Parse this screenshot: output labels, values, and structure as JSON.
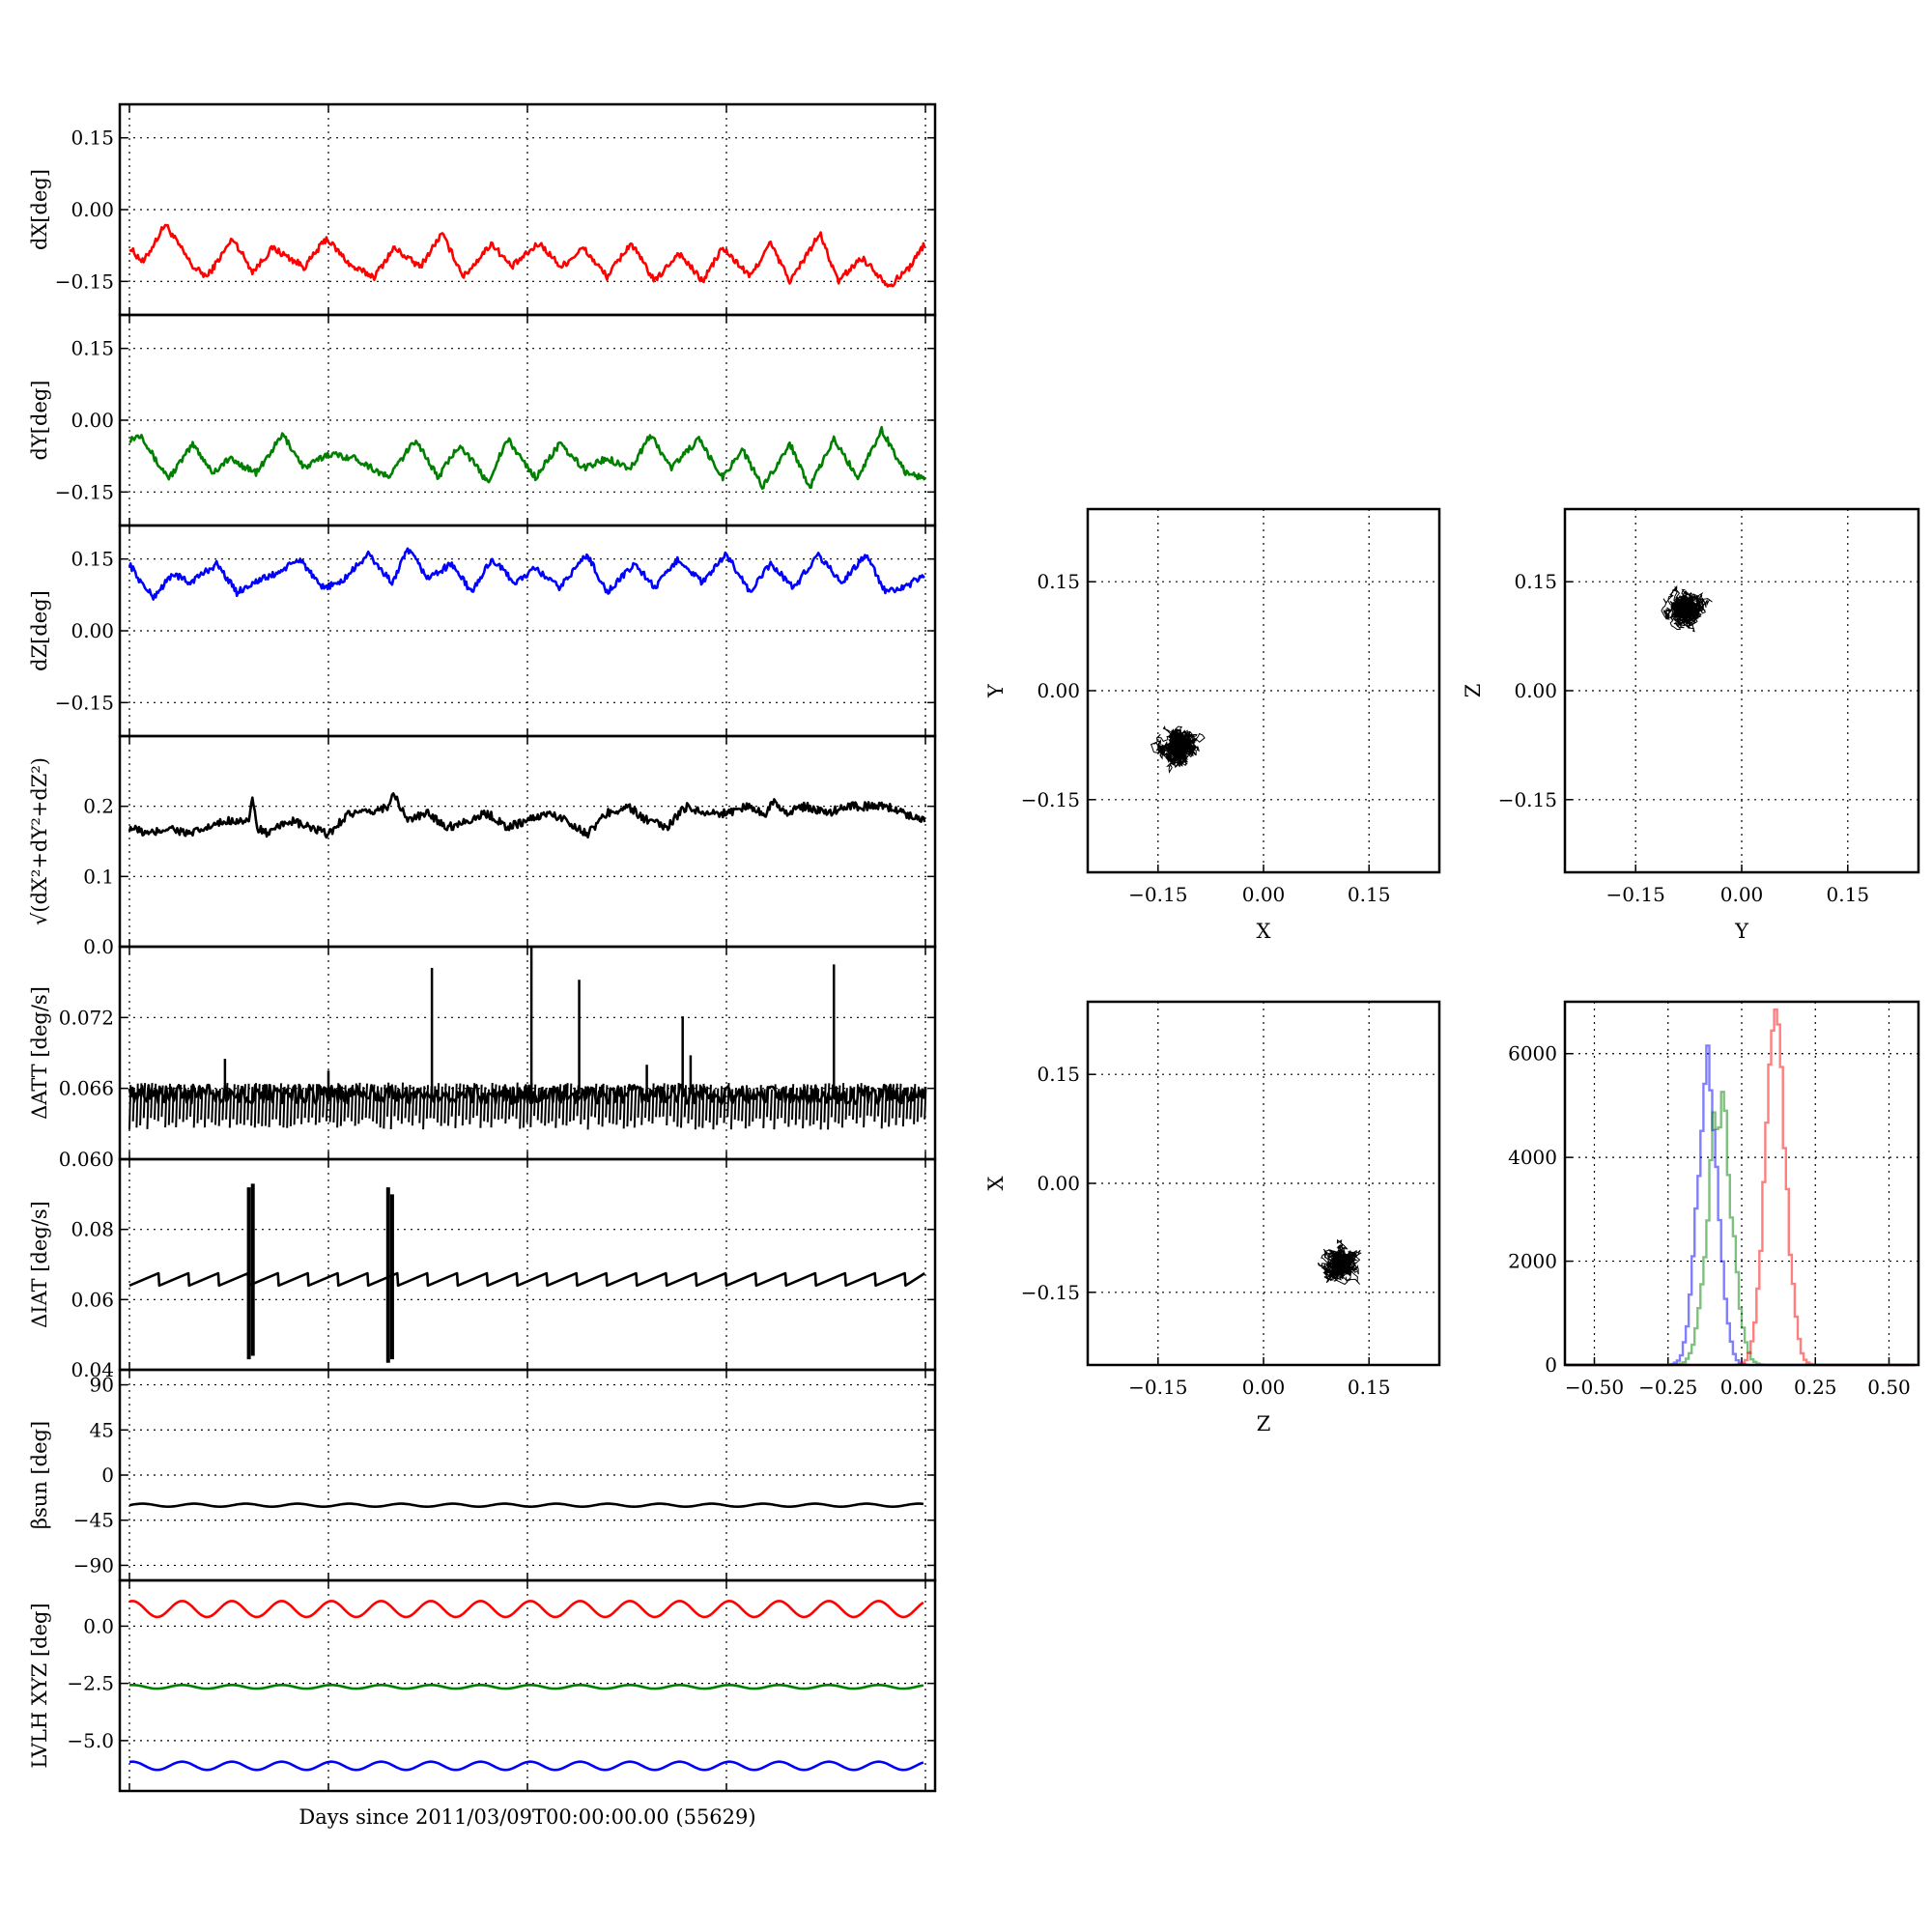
{
  "figure": {
    "xlabel": "Days since 2011/03/09T00:00:00.00 (55629)"
  },
  "chart_data": [
    {
      "id": "dx",
      "type": "line",
      "ylabel": "dX[deg]",
      "xlim": [
        0,
        20
      ],
      "ylim": [
        -0.22,
        0.22
      ],
      "yticks": [
        0.15,
        0.0,
        -0.15
      ],
      "ytick_labels": [
        "0.15",
        "0.00",
        "−0.15"
      ],
      "color": "#ff0000",
      "grid": true,
      "series": [
        {
          "x": [
            0,
            0.35,
            0.9,
            1.6,
            1.95,
            2.6,
            3.1,
            3.6,
            4.4,
            4.95,
            5.6,
            6.15,
            6.65,
            7.3,
            7.85,
            8.4,
            9.1,
            9.6,
            10.3,
            10.85,
            11.4,
            12.0,
            12.6,
            13.2,
            13.8,
            14.4,
            14.9,
            15.6,
            16.1,
            16.6,
            17.35,
            17.8,
            18.4,
            19.1,
            19.6,
            20
          ],
          "y": [
            -0.08,
            -0.11,
            -0.03,
            -0.12,
            -0.14,
            -0.06,
            -0.13,
            -0.08,
            -0.12,
            -0.06,
            -0.12,
            -0.14,
            -0.08,
            -0.12,
            -0.05,
            -0.14,
            -0.07,
            -0.12,
            -0.07,
            -0.12,
            -0.08,
            -0.14,
            -0.07,
            -0.15,
            -0.09,
            -0.15,
            -0.08,
            -0.14,
            -0.07,
            -0.15,
            -0.05,
            -0.15,
            -0.1,
            -0.16,
            -0.12,
            -0.07
          ]
        }
      ]
    },
    {
      "id": "dy",
      "type": "line",
      "ylabel": "dY[deg]",
      "xlim": [
        0,
        20
      ],
      "ylim": [
        -0.22,
        0.22
      ],
      "yticks": [
        0.15,
        0.0,
        -0.15
      ],
      "ytick_labels": [
        "0.15",
        "0.00",
        "−0.15"
      ],
      "color": "#008000",
      "grid": true,
      "series": [
        {
          "x": [
            0,
            0.3,
            0.7,
            1.0,
            1.6,
            2.1,
            2.5,
            3.2,
            3.85,
            4.4,
            5.0,
            5.7,
            6.1,
            6.5,
            7.2,
            7.75,
            8.3,
            9.0,
            9.5,
            10.2,
            10.8,
            11.4,
            12.0,
            12.6,
            13.1,
            13.6,
            14.3,
            14.9,
            15.4,
            15.9,
            16.6,
            17.1,
            17.7,
            18.3,
            18.9,
            19.5,
            20
          ],
          "y": [
            -0.04,
            -0.03,
            -0.09,
            -0.12,
            -0.05,
            -0.11,
            -0.08,
            -0.11,
            -0.03,
            -0.1,
            -0.07,
            -0.08,
            -0.1,
            -0.12,
            -0.04,
            -0.12,
            -0.05,
            -0.13,
            -0.04,
            -0.12,
            -0.05,
            -0.1,
            -0.08,
            -0.1,
            -0.03,
            -0.1,
            -0.04,
            -0.12,
            -0.06,
            -0.14,
            -0.05,
            -0.14,
            -0.04,
            -0.12,
            -0.02,
            -0.11,
            -0.12
          ]
        }
      ]
    },
    {
      "id": "dz",
      "type": "line",
      "ylabel": "dZ[deg]",
      "xlim": [
        0,
        20
      ],
      "ylim": [
        -0.22,
        0.22
      ],
      "yticks": [
        0.15,
        0.0,
        -0.15
      ],
      "ytick_labels": [
        "0.15",
        "0.00",
        "−0.15"
      ],
      "color": "#0000ff",
      "grid": true,
      "series": [
        {
          "x": [
            0,
            0.3,
            0.6,
            1.1,
            1.5,
            2.2,
            2.7,
            3.1,
            3.7,
            4.3,
            4.8,
            5.3,
            6.0,
            6.6,
            7.0,
            7.5,
            8.1,
            8.6,
            9.1,
            9.7,
            10.2,
            10.8,
            11.5,
            12.0,
            12.7,
            13.2,
            13.8,
            14.4,
            15.0,
            15.6,
            16.1,
            16.7,
            17.3,
            17.9,
            18.5,
            19.0,
            19.5,
            20
          ],
          "y": [
            0.14,
            0.1,
            0.07,
            0.12,
            0.1,
            0.14,
            0.08,
            0.1,
            0.12,
            0.15,
            0.09,
            0.1,
            0.16,
            0.1,
            0.17,
            0.11,
            0.14,
            0.08,
            0.15,
            0.1,
            0.13,
            0.09,
            0.16,
            0.08,
            0.14,
            0.09,
            0.15,
            0.1,
            0.16,
            0.08,
            0.14,
            0.09,
            0.16,
            0.1,
            0.16,
            0.08,
            0.09,
            0.12
          ]
        }
      ]
    },
    {
      "id": "r",
      "type": "line",
      "ylabel": "√(dX²+dY²+dZ²)",
      "xlim": [
        0,
        20
      ],
      "ylim": [
        0.0,
        0.3
      ],
      "yticks": [
        0.2,
        0.1,
        0.0
      ],
      "ytick_labels": [
        "0.2",
        "0.1",
        "0.0"
      ],
      "color": "#000000",
      "grid": true,
      "series": [
        {
          "x": [
            0,
            0.5,
            1.0,
            1.5,
            2.0,
            2.5,
            3.0,
            3.1,
            3.2,
            3.5,
            4.0,
            4.5,
            5.0,
            5.5,
            6.0,
            6.5,
            6.6,
            7.0,
            7.5,
            8.0,
            8.5,
            9.0,
            9.5,
            10.0,
            10.5,
            11.0,
            11.5,
            12.0,
            12.5,
            13.0,
            13.5,
            14.0,
            14.5,
            15.0,
            15.5,
            16.0,
            16.2,
            16.5,
            17.0,
            17.5,
            18.0,
            18.5,
            19.0,
            19.5,
            20
          ],
          "y": [
            0.17,
            0.16,
            0.17,
            0.16,
            0.17,
            0.18,
            0.18,
            0.21,
            0.17,
            0.16,
            0.18,
            0.17,
            0.16,
            0.19,
            0.19,
            0.2,
            0.22,
            0.18,
            0.19,
            0.17,
            0.18,
            0.19,
            0.17,
            0.18,
            0.19,
            0.18,
            0.16,
            0.19,
            0.2,
            0.18,
            0.17,
            0.2,
            0.19,
            0.19,
            0.2,
            0.19,
            0.21,
            0.19,
            0.2,
            0.19,
            0.2,
            0.2,
            0.2,
            0.19,
            0.18
          ]
        }
      ]
    },
    {
      "id": "datt",
      "type": "line",
      "ylabel": "ΔATT [deg/s]",
      "xlim": [
        0,
        20
      ],
      "ylim": [
        0.06,
        0.078
      ],
      "yticks": [
        0.072,
        0.066,
        0.06
      ],
      "ytick_labels": [
        "0.072",
        "0.066",
        "0.060"
      ],
      "color": "#000000",
      "grid": true,
      "baseline": 0.0655,
      "band": [
        0.0625,
        0.0665
      ],
      "spikes": [
        {
          "x": 2.4,
          "y": 0.0685
        },
        {
          "x": 5.0,
          "y": 0.0675
        },
        {
          "x": 7.6,
          "y": 0.0762
        },
        {
          "x": 10.1,
          "y": 0.0783
        },
        {
          "x": 11.3,
          "y": 0.0752
        },
        {
          "x": 13.0,
          "y": 0.068
        },
        {
          "x": 13.9,
          "y": 0.0721
        },
        {
          "x": 14.1,
          "y": 0.0688
        },
        {
          "x": 17.7,
          "y": 0.0765
        }
      ]
    },
    {
      "id": "diat",
      "type": "line",
      "ylabel": "ΔIAT [deg/s]",
      "xlim": [
        0,
        20
      ],
      "ylim": [
        0.04,
        0.1
      ],
      "yticks": [
        0.08,
        0.06,
        0.04
      ],
      "ytick_labels": [
        "0.08",
        "0.06",
        "0.04"
      ],
      "color": "#000000",
      "grid": true,
      "sawtooth": {
        "low": 0.064,
        "high": 0.0675,
        "period": 0.75
      },
      "spikes": [
        {
          "x": 3.0,
          "low": 0.043,
          "high": 0.092
        },
        {
          "x": 3.1,
          "low": 0.044,
          "high": 0.093
        },
        {
          "x": 6.5,
          "low": 0.042,
          "high": 0.092
        },
        {
          "x": 6.6,
          "low": 0.043,
          "high": 0.09
        }
      ]
    },
    {
      "id": "beta",
      "type": "line",
      "ylabel": "βsun [deg]",
      "xlim": [
        0,
        20
      ],
      "ylim": [
        -105,
        105
      ],
      "yticks": [
        90,
        45,
        0,
        -45,
        -90
      ],
      "ytick_labels": [
        "90",
        "45",
        "0",
        "−45",
        "−90"
      ],
      "color": "#000000",
      "grid": true,
      "wave": {
        "mean": -30,
        "amp": 1.5,
        "period": 1.3
      }
    },
    {
      "id": "lvlh",
      "type": "line",
      "ylabel": "LVLH XYZ [deg]",
      "xlim": [
        0,
        20
      ],
      "ylim": [
        -7.2,
        2.0
      ],
      "yticks": [
        0.0,
        -2.5,
        -5.0
      ],
      "ytick_labels": [
        "0.0",
        "−2.5",
        "−5.0"
      ],
      "grid": true,
      "series": [
        {
          "color": "#ff0000",
          "mean": 0.75,
          "amp": 0.35,
          "period": 1.25
        },
        {
          "color": "#008000",
          "mean": -2.65,
          "amp": 0.08,
          "period": 1.25
        },
        {
          "color": "#0000ff",
          "mean": -6.1,
          "amp": 0.18,
          "period": 1.25
        }
      ]
    },
    {
      "id": "xy",
      "type": "scatter",
      "xlabel": "X",
      "ylabel": "Y",
      "xlim": [
        -0.25,
        0.25
      ],
      "ylim": [
        -0.25,
        0.25
      ],
      "ticks": [
        -0.15,
        0.0,
        0.15
      ],
      "tick_labels": [
        "−0.15",
        "0.00",
        "0.15"
      ],
      "center": [
        -0.12,
        -0.08
      ],
      "spread": [
        0.035,
        0.035
      ],
      "grid": true
    },
    {
      "id": "yz",
      "type": "scatter",
      "xlabel": "Y",
      "ylabel": "Z",
      "xlim": [
        -0.25,
        0.25
      ],
      "ylim": [
        -0.25,
        0.25
      ],
      "ticks": [
        -0.15,
        0.0,
        0.15
      ],
      "tick_labels": [
        "−0.15",
        "0.00",
        "0.15"
      ],
      "center": [
        -0.08,
        0.115
      ],
      "spread": [
        0.035,
        0.03
      ],
      "grid": true
    },
    {
      "id": "zx",
      "type": "scatter",
      "xlabel": "Z",
      "ylabel": "X",
      "xlim": [
        -0.25,
        0.25
      ],
      "ylim": [
        -0.25,
        0.25
      ],
      "ticks": [
        -0.15,
        0.0,
        0.15
      ],
      "tick_labels": [
        "−0.15",
        "0.00",
        "0.15"
      ],
      "center": [
        0.11,
        -0.11
      ],
      "spread": [
        0.03,
        0.035
      ],
      "grid": true
    },
    {
      "id": "hist",
      "type": "histogram",
      "xlim": [
        -0.6,
        0.6
      ],
      "ylim": [
        0,
        7000
      ],
      "xticks": [
        -0.5,
        -0.25,
        0.0,
        0.25,
        0.5
      ],
      "xtick_labels": [
        "−0.50",
        "−0.25",
        "0.00",
        "0.25",
        "0.50"
      ],
      "yticks": [
        0,
        2000,
        4000,
        6000
      ],
      "ytick_labels": [
        "0",
        "2000",
        "4000",
        "6000"
      ],
      "grid": true,
      "series": [
        {
          "color": "#0000ff",
          "center": -0.12,
          "sigma": 0.035,
          "peak": 5900
        },
        {
          "color": "#008000",
          "center": -0.08,
          "sigma": 0.04,
          "peak": 5300
        },
        {
          "color": "#ff0000",
          "center": 0.11,
          "sigma": 0.035,
          "peak": 6600
        }
      ]
    }
  ]
}
